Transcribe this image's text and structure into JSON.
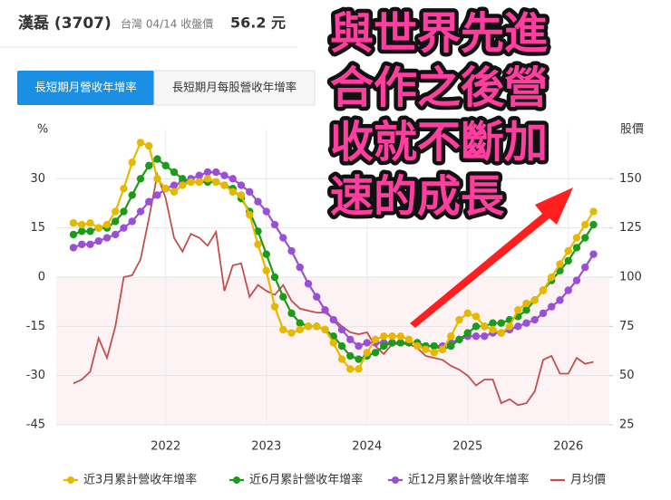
{
  "header": {
    "name": "漢磊 (3707)",
    "date_label": "台灣 04/14 收盤價",
    "price": "56.2 元"
  },
  "tabs": [
    "長短期月營收年增率",
    "長短期月每股營收年增率"
  ],
  "chart_data": {
    "type": "line",
    "categories": [
      null,
      null,
      null,
      null,
      null,
      null,
      null,
      null,
      null,
      null,
      null,
      "2022",
      null,
      null,
      null,
      null,
      null,
      null,
      null,
      null,
      null,
      null,
      null,
      "2023",
      null,
      null,
      null,
      null,
      null,
      null,
      null,
      null,
      null,
      null,
      null,
      "2024",
      null,
      null,
      null,
      null,
      null,
      null,
      null,
      null,
      null,
      null,
      null,
      "2025",
      null,
      null,
      null,
      null,
      null,
      null,
      null,
      null,
      null,
      null,
      null,
      "2026",
      null,
      null,
      null
    ],
    "y_label": "%",
    "y2_label": "股價",
    "ylim": [
      -45,
      45
    ],
    "yticks": [
      -45,
      -30,
      -15,
      0,
      15,
      30
    ],
    "y2lim": [
      25,
      175
    ],
    "y2ticks": [
      25,
      50,
      75,
      100,
      125,
      150
    ],
    "grid": true,
    "series": [
      {
        "name": "近3月累計營收年增率",
        "color": "#e6b800",
        "markers": true,
        "values": [
          16.5,
          16,
          16.5,
          15,
          16,
          20,
          27,
          35,
          41,
          40,
          30,
          27,
          26,
          28,
          29,
          29,
          30,
          29,
          28,
          26,
          25,
          19,
          10,
          2,
          -9,
          -16,
          -17,
          -16,
          -15,
          -15,
          -16,
          -20,
          -25,
          -28,
          -28,
          -23,
          -19,
          -18,
          -18,
          -18,
          -19,
          -21,
          -22,
          -23,
          -22,
          -18,
          -13,
          -11,
          -12,
          -15,
          -16,
          -17,
          -15,
          -10,
          -8,
          -7,
          -4,
          0,
          4,
          8,
          12,
          16,
          20
        ]
      },
      {
        "name": "近6月累計營收年增率",
        "color": "#1a9c1a",
        "markers": true,
        "values": [
          13,
          14,
          14,
          15,
          15,
          17,
          20,
          25,
          30,
          34,
          36,
          34,
          32,
          30,
          29,
          29,
          29,
          29,
          28,
          27,
          24,
          20,
          14,
          7,
          0,
          -6,
          -11,
          -14,
          -15,
          -15,
          -16,
          -18,
          -21,
          -24,
          -25,
          -24,
          -23,
          -21,
          -20,
          -20,
          -20,
          -20,
          -21,
          -21,
          -22,
          -21,
          -19,
          -17,
          -15,
          -15,
          -14,
          -14,
          -13,
          -12,
          -10,
          -7,
          -4,
          -1,
          2,
          5,
          9,
          12,
          16
        ]
      },
      {
        "name": "近12月累計營收年增率",
        "color": "#9b4fd6",
        "markers": true,
        "values": [
          9,
          10,
          10,
          11,
          12,
          13,
          15,
          17,
          20,
          23,
          25,
          27,
          28,
          29,
          30,
          31,
          32,
          32,
          31,
          30,
          28,
          26,
          23,
          20,
          16,
          12,
          8,
          3,
          -2,
          -6,
          -10,
          -13,
          -16,
          -19,
          -21,
          -20,
          -20,
          -20,
          -20,
          -20,
          -20,
          -20,
          -21,
          -21,
          -21,
          -20,
          -19,
          -18,
          -18,
          -18,
          -17,
          -17,
          -16,
          -15,
          -14,
          -13,
          -11,
          -9,
          -7,
          -4,
          -1,
          3,
          7
        ]
      },
      {
        "name": "月均價",
        "color": "#c0504d",
        "markers": false,
        "axis": "y2",
        "values": [
          46,
          48,
          52,
          69,
          59,
          75,
          100,
          101,
          109,
          130,
          152,
          140,
          120,
          113,
          122,
          120,
          116,
          123,
          93,
          106,
          107,
          90,
          96,
          93,
          91,
          96,
          88,
          84,
          83,
          82,
          82,
          79,
          75,
          72,
          71,
          72,
          65,
          61,
          66,
          66,
          66,
          64,
          60,
          59,
          58,
          55,
          53,
          50,
          45,
          48,
          48,
          36,
          38,
          35,
          36,
          42,
          58,
          60,
          51,
          51,
          59,
          56,
          57
        ]
      }
    ],
    "annotation": [
      "與世界先進",
      "合作之後營",
      "收就不斷加",
      "速的成長"
    ]
  }
}
